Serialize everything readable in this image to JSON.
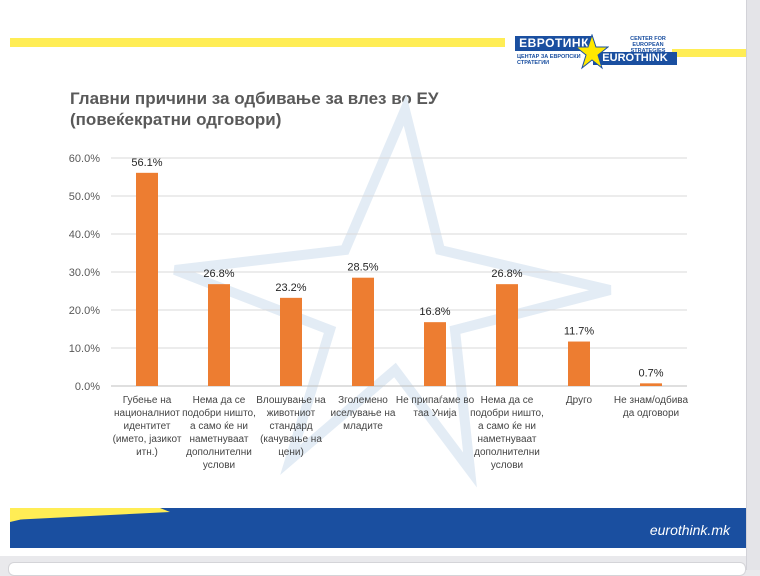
{
  "header": {
    "logo_mk": "ЕВРОТИНК",
    "logo_mk_sub": "ЦЕНТАР ЗА ЕВРОПСКИ СТРАТЕГИИ",
    "logo_en_top": "CENTER FOR EUROPEAN STRATEGIES",
    "logo_en": "EUROTHINK"
  },
  "title_line1": "Главни причини за одбивање за влез во ЕУ",
  "title_line2": "(повеќекратни одговори)",
  "footer": {
    "site": "eurothink.mk"
  },
  "colors": {
    "bar": "#ed7d31",
    "yellow": "#ffed55",
    "blue": "#1a4fa0",
    "grid": "#d9d9d9"
  },
  "chart_data": {
    "type": "bar",
    "categories": [
      "Губење на националниот идентитет (името, јазикот итн.)",
      "Нема да се подобри ништо, а само ќе ни наметнуваат дополнителни услови",
      "Влошување на животниот стандард (качување на цени)",
      "Зголемено иселување на младите",
      "Не припаѓаме во таа Унија",
      "Нема да се подобри ништо, а само ќе ни наметнуваат дополнителни услови",
      "Друго",
      "Не знам/одбива да одговори"
    ],
    "values": [
      56.1,
      26.8,
      23.2,
      28.5,
      16.8,
      26.8,
      11.7,
      0.7
    ],
    "data_labels": [
      "56.1%",
      "26.8%",
      "23.2%",
      "28.5%",
      "16.8%",
      "26.8%",
      "11.7%",
      "0.7%"
    ],
    "ylim": [
      0,
      60
    ],
    "yticks": [
      "0.0%",
      "10.0%",
      "20.0%",
      "30.0%",
      "40.0%",
      "50.0%",
      "60.0%"
    ],
    "grid": true,
    "title": "Главни причини за одбивање за влез во ЕУ (повеќекратни одговори)"
  }
}
